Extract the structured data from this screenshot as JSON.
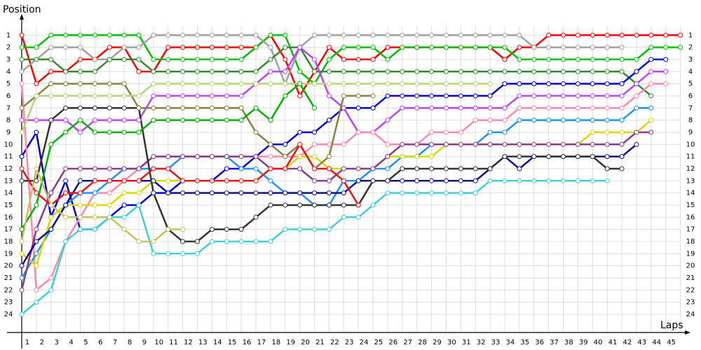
{
  "chart_data": {
    "type": "line",
    "y_label": "Position",
    "x_label": "Laps",
    "x": [
      0,
      1,
      2,
      3,
      4,
      5,
      6,
      7,
      8,
      9,
      10,
      11,
      12,
      13,
      14,
      15,
      16,
      17,
      18,
      19,
      20,
      21,
      22,
      23,
      24,
      25,
      26,
      27,
      28,
      29,
      30,
      31,
      32,
      33,
      34,
      35,
      36,
      37,
      38,
      39,
      40,
      41,
      42,
      43,
      44,
      45
    ],
    "xlim": [
      0,
      45.5
    ],
    "xticks": [
      1,
      2,
      3,
      4,
      5,
      6,
      7,
      8,
      9,
      10,
      11,
      12,
      13,
      14,
      15,
      16,
      17,
      18,
      19,
      20,
      21,
      22,
      23,
      24,
      25,
      26,
      27,
      28,
      29,
      30,
      31,
      32,
      33,
      34,
      35,
      36,
      37,
      38,
      39,
      40,
      41,
      42,
      43,
      44,
      45
    ],
    "ylim": [
      25.5,
      -0.4
    ],
    "yticks": [
      1,
      2,
      3,
      4,
      5,
      6,
      7,
      8,
      9,
      10,
      11,
      12,
      13,
      14,
      15,
      16,
      17,
      18,
      19,
      20,
      21,
      22,
      23,
      24
    ],
    "grid": true,
    "series": [
      {
        "color": "#ff0000",
        "values": [
          1,
          5,
          4,
          4,
          3,
          3,
          2,
          2,
          4,
          4,
          2,
          2,
          2,
          2,
          2,
          2,
          2,
          1,
          3,
          6,
          4,
          2,
          3,
          3,
          3,
          2,
          2,
          2,
          2,
          2,
          2,
          2,
          2,
          3,
          2,
          2,
          1,
          1,
          1,
          1,
          1,
          1,
          1,
          1,
          1,
          1
        ]
      },
      {
        "color": "#00c000",
        "values": [
          2,
          2,
          1,
          1,
          1,
          1,
          1,
          1,
          1,
          3,
          3,
          3,
          3,
          3,
          3,
          3,
          2,
          1,
          1,
          4,
          5,
          3,
          2,
          2,
          2,
          3,
          2,
          2,
          2,
          2,
          2,
          2,
          2,
          2,
          3,
          3,
          3,
          3,
          3,
          3,
          3,
          3,
          3,
          2,
          2,
          2
        ]
      },
      {
        "color": "#a0a0a0",
        "values": [
          4,
          3,
          2,
          2,
          2,
          3,
          3,
          2,
          2,
          1,
          1,
          1,
          1,
          1,
          1,
          1,
          1,
          2,
          5,
          2,
          1,
          1,
          1,
          1,
          1,
          1,
          1,
          1,
          1,
          1,
          1,
          1,
          1,
          1,
          1,
          2,
          2,
          2,
          2,
          2,
          2,
          2,
          null,
          null,
          null,
          null
        ]
      },
      {
        "color": "#2e8b2e",
        "values": [
          3,
          3,
          3,
          4,
          4,
          4,
          3,
          3,
          3,
          4,
          4,
          4,
          4,
          4,
          4,
          4,
          4,
          3,
          2,
          2,
          4,
          4,
          4,
          4,
          4,
          4,
          4,
          4,
          4,
          4,
          4,
          4,
          4,
          4,
          4,
          4,
          4,
          4,
          4,
          4,
          4,
          4,
          5,
          6,
          null,
          null
        ]
      },
      {
        "color": "#0000e0",
        "values": [
          11,
          9,
          16,
          13,
          17,
          17,
          16,
          15,
          15,
          14,
          14,
          13,
          13,
          13,
          12,
          12,
          11,
          10,
          10,
          9,
          9,
          8,
          7,
          7,
          7,
          6,
          6,
          6,
          6,
          6,
          6,
          6,
          6,
          5,
          5,
          5,
          5,
          5,
          5,
          5,
          5,
          5,
          4,
          3,
          3,
          null
        ]
      },
      {
        "color": "#c040ff",
        "values": [
          8,
          8,
          8,
          8,
          9,
          8,
          8,
          8,
          8,
          6,
          6,
          6,
          6,
          6,
          6,
          6,
          5,
          4,
          4,
          2,
          3,
          6,
          7,
          9,
          9,
          8,
          7,
          7,
          7,
          7,
          7,
          7,
          7,
          7,
          6,
          6,
          6,
          6,
          6,
          6,
          6,
          6,
          5,
          4,
          4,
          null
        ]
      },
      {
        "color": "#ff88aa",
        "values": [
          5,
          22,
          21,
          18,
          16,
          14,
          14,
          13,
          12,
          11,
          11,
          11,
          11,
          11,
          11,
          11,
          11,
          11,
          11,
          11,
          10,
          10,
          10,
          9,
          9,
          10,
          10,
          10,
          9,
          9,
          9,
          8,
          8,
          8,
          7,
          7,
          7,
          7,
          7,
          7,
          7,
          7,
          6,
          5,
          5,
          null
        ]
      },
      {
        "color": "#1e90ff",
        "values": [
          21,
          19,
          17,
          15,
          14,
          14,
          13,
          12,
          12,
          12,
          12,
          11,
          11,
          11,
          11,
          12,
          12,
          13,
          14,
          14,
          15,
          15,
          13,
          13,
          12,
          12,
          11,
          11,
          10,
          10,
          10,
          10,
          9,
          9,
          8,
          8,
          8,
          8,
          8,
          8,
          8,
          8,
          7,
          7,
          null,
          null
        ]
      },
      {
        "color": "#d8d800",
        "values": [
          19,
          20,
          16,
          15,
          15,
          15,
          15,
          14,
          14,
          13,
          13,
          13,
          13,
          13,
          13,
          13,
          13,
          12,
          12,
          11,
          11,
          12,
          12,
          12,
          12,
          11,
          11,
          11,
          11,
          10,
          10,
          10,
          10,
          10,
          10,
          10,
          10,
          10,
          10,
          9,
          9,
          9,
          9,
          8,
          null,
          null
        ]
      },
      {
        "color": "#8b3a8b",
        "values": [
          22,
          17,
          14,
          12,
          12,
          12,
          12,
          12,
          12,
          11,
          11,
          11,
          11,
          11,
          11,
          11,
          11,
          12,
          12,
          12,
          13,
          13,
          12,
          12,
          12,
          11,
          10,
          10,
          10,
          10,
          10,
          10,
          10,
          10,
          10,
          10,
          10,
          10,
          10,
          10,
          10,
          10,
          9,
          9,
          null,
          null
        ]
      },
      {
        "color": "#10108b",
        "values": [
          20,
          18,
          17,
          15,
          13,
          13,
          13,
          13,
          13,
          13,
          14,
          14,
          14,
          14,
          14,
          14,
          14,
          14,
          14,
          14,
          14,
          14,
          14,
          13,
          13,
          13,
          13,
          13,
          13,
          13,
          13,
          13,
          12,
          11,
          12,
          11,
          11,
          11,
          11,
          11,
          11,
          11,
          10,
          null,
          null,
          null
        ]
      },
      {
        "color": "#333333",
        "values": [
          13,
          13,
          8,
          7,
          7,
          7,
          7,
          7,
          7,
          14,
          17,
          18,
          18,
          17,
          17,
          17,
          16,
          15,
          15,
          15,
          15,
          15,
          15,
          15,
          13,
          13,
          12,
          12,
          12,
          12,
          12,
          12,
          12,
          11,
          11,
          11,
          11,
          11,
          11,
          11,
          12,
          12,
          null,
          null,
          null,
          null
        ]
      },
      {
        "color": "#40d0d0",
        "values": [
          24,
          23,
          22,
          18,
          17,
          17,
          16,
          16,
          15,
          19,
          19,
          19,
          19,
          18,
          18,
          18,
          18,
          18,
          17,
          17,
          17,
          17,
          16,
          16,
          15,
          14,
          14,
          14,
          14,
          14,
          14,
          14,
          13,
          13,
          13,
          13,
          13,
          13,
          13,
          13,
          13,
          null,
          null,
          null,
          null,
          null
        ]
      },
      {
        "color": "#8b8040",
        "values": [
          7,
          6,
          5,
          5,
          5,
          5,
          5,
          5,
          7,
          7,
          7,
          7,
          7,
          7,
          7,
          7,
          9,
          10,
          11,
          10,
          12,
          11,
          6,
          6,
          6,
          null,
          null,
          null,
          null,
          null,
          null,
          null,
          null,
          null,
          null,
          null,
          null,
          null,
          null,
          null,
          null,
          null,
          null,
          null,
          null,
          null
        ]
      },
      {
        "color": "#b0d870",
        "values": [
          9,
          6,
          6,
          6,
          6,
          6,
          6,
          6,
          6,
          5,
          5,
          5,
          5,
          5,
          5,
          5,
          5,
          5,
          5,
          5,
          5,
          5,
          5,
          5,
          5,
          5,
          5,
          5,
          5,
          5,
          5,
          5,
          5,
          null,
          null,
          null,
          null,
          null,
          null,
          null,
          null,
          null,
          null,
          null,
          null,
          null
        ]
      },
      {
        "color": "#00b000",
        "values": [
          17,
          15,
          10,
          9,
          8,
          9,
          9,
          9,
          9,
          8,
          8,
          8,
          8,
          8,
          8,
          8,
          7,
          8,
          6,
          5,
          7,
          null,
          null,
          null,
          null,
          null,
          null,
          null,
          null,
          null,
          null,
          null,
          null,
          null,
          null,
          null,
          null,
          null,
          null,
          null,
          null,
          null,
          null,
          null,
          null,
          null
        ]
      },
      {
        "color": "#ee1111",
        "values": [
          12,
          14,
          15,
          14,
          14,
          13,
          13,
          13,
          13,
          12,
          12,
          13,
          13,
          13,
          13,
          13,
          13,
          12,
          12,
          10,
          12,
          12,
          13,
          15,
          null,
          null,
          null,
          null,
          null,
          null,
          null,
          null,
          null,
          null,
          null,
          null,
          null,
          null,
          null,
          null,
          null,
          null,
          null,
          null,
          null,
          null
        ]
      },
      {
        "color": "#c8c060",
        "values": [
          18,
          12,
          15,
          16,
          16,
          16,
          16,
          17,
          18,
          18,
          17,
          17,
          null,
          null,
          null,
          null,
          null,
          null,
          null,
          null,
          null,
          null,
          null,
          null,
          null,
          null,
          null,
          null,
          null,
          null,
          null,
          null,
          null,
          null,
          null,
          null,
          null,
          null,
          null,
          null,
          null,
          null,
          null,
          null,
          null,
          null
        ]
      }
    ]
  }
}
